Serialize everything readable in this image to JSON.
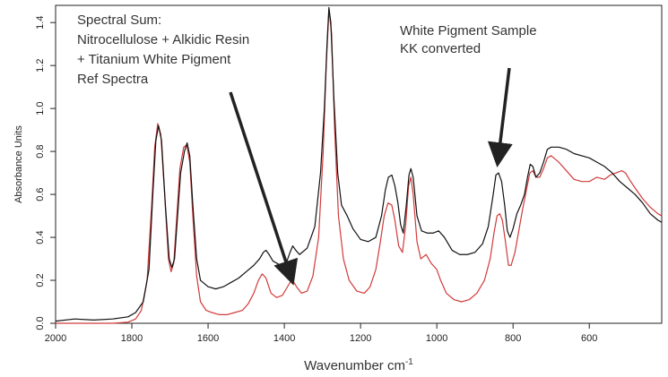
{
  "chart_data": {
    "type": "line",
    "title": "",
    "xlabel": "Wavenumber",
    "xlabel_unit": "cm",
    "xlabel_unit_sup": "-1",
    "ylabel": "Absorbance Units",
    "xlim": [
      2000,
      410
    ],
    "ylim": [
      0,
      1.48
    ],
    "x_reversed": true,
    "x_ticks": [
      2000,
      1800,
      1600,
      1400,
      1200,
      1000,
      800,
      600
    ],
    "y_ticks": [
      0.0,
      0.2,
      0.4,
      0.6,
      0.8,
      1.0,
      1.2,
      1.4
    ],
    "y_tick_labels": [
      "0.0",
      "0.2",
      "0.4",
      "0.6",
      "0.8",
      "1.0",
      "1.2",
      "1.4"
    ],
    "grid": false,
    "series": [
      {
        "name": "White Pigment Sample KK converted",
        "color": "#111111",
        "points": [
          [
            2000,
            0.01
          ],
          [
            1950,
            0.02
          ],
          [
            1900,
            0.015
          ],
          [
            1850,
            0.02
          ],
          [
            1810,
            0.03
          ],
          [
            1790,
            0.05
          ],
          [
            1770,
            0.1
          ],
          [
            1755,
            0.25
          ],
          [
            1745,
            0.6
          ],
          [
            1737,
            0.85
          ],
          [
            1730,
            0.92
          ],
          [
            1722,
            0.85
          ],
          [
            1712,
            0.55
          ],
          [
            1702,
            0.3
          ],
          [
            1695,
            0.26
          ],
          [
            1688,
            0.3
          ],
          [
            1680,
            0.5
          ],
          [
            1672,
            0.7
          ],
          [
            1662,
            0.8
          ],
          [
            1655,
            0.84
          ],
          [
            1648,
            0.78
          ],
          [
            1640,
            0.55
          ],
          [
            1630,
            0.3
          ],
          [
            1620,
            0.2
          ],
          [
            1600,
            0.17
          ],
          [
            1580,
            0.16
          ],
          [
            1560,
            0.17
          ],
          [
            1540,
            0.19
          ],
          [
            1520,
            0.21
          ],
          [
            1500,
            0.24
          ],
          [
            1480,
            0.27
          ],
          [
            1465,
            0.3
          ],
          [
            1455,
            0.33
          ],
          [
            1448,
            0.34
          ],
          [
            1440,
            0.32
          ],
          [
            1430,
            0.29
          ],
          [
            1410,
            0.27
          ],
          [
            1395,
            0.28
          ],
          [
            1385,
            0.33
          ],
          [
            1378,
            0.36
          ],
          [
            1370,
            0.34
          ],
          [
            1360,
            0.32
          ],
          [
            1340,
            0.35
          ],
          [
            1320,
            0.45
          ],
          [
            1305,
            0.7
          ],
          [
            1295,
            1.0
          ],
          [
            1288,
            1.3
          ],
          [
            1283,
            1.47
          ],
          [
            1278,
            1.4
          ],
          [
            1270,
            1.05
          ],
          [
            1260,
            0.7
          ],
          [
            1250,
            0.55
          ],
          [
            1235,
            0.5
          ],
          [
            1220,
            0.44
          ],
          [
            1200,
            0.39
          ],
          [
            1180,
            0.38
          ],
          [
            1160,
            0.4
          ],
          [
            1145,
            0.5
          ],
          [
            1135,
            0.62
          ],
          [
            1127,
            0.68
          ],
          [
            1118,
            0.69
          ],
          [
            1110,
            0.64
          ],
          [
            1102,
            0.56
          ],
          [
            1095,
            0.46
          ],
          [
            1088,
            0.42
          ],
          [
            1080,
            0.55
          ],
          [
            1073,
            0.69
          ],
          [
            1068,
            0.72
          ],
          [
            1062,
            0.68
          ],
          [
            1052,
            0.5
          ],
          [
            1040,
            0.43
          ],
          [
            1025,
            0.42
          ],
          [
            1010,
            0.42
          ],
          [
            995,
            0.43
          ],
          [
            980,
            0.4
          ],
          [
            960,
            0.34
          ],
          [
            940,
            0.32
          ],
          [
            920,
            0.32
          ],
          [
            900,
            0.33
          ],
          [
            880,
            0.37
          ],
          [
            865,
            0.45
          ],
          [
            852,
            0.6
          ],
          [
            845,
            0.69
          ],
          [
            838,
            0.7
          ],
          [
            830,
            0.66
          ],
          [
            822,
            0.55
          ],
          [
            815,
            0.43
          ],
          [
            808,
            0.4
          ],
          [
            800,
            0.44
          ],
          [
            790,
            0.51
          ],
          [
            780,
            0.55
          ],
          [
            770,
            0.6
          ],
          [
            762,
            0.68
          ],
          [
            755,
            0.74
          ],
          [
            748,
            0.73
          ],
          [
            740,
            0.68
          ],
          [
            730,
            0.7
          ],
          [
            720,
            0.75
          ],
          [
            710,
            0.81
          ],
          [
            700,
            0.82
          ],
          [
            680,
            0.82
          ],
          [
            660,
            0.81
          ],
          [
            640,
            0.79
          ],
          [
            620,
            0.78
          ],
          [
            600,
            0.77
          ],
          [
            580,
            0.75
          ],
          [
            560,
            0.73
          ],
          [
            540,
            0.7
          ],
          [
            520,
            0.66
          ],
          [
            500,
            0.63
          ],
          [
            480,
            0.6
          ],
          [
            460,
            0.56
          ],
          [
            440,
            0.51
          ],
          [
            420,
            0.48
          ],
          [
            410,
            0.47
          ]
        ]
      },
      {
        "name": "Spectral Sum: Nitrocellulose + Alkidic Resin + Titanium White Pigment Ref Spectra",
        "color": "#d23a3a",
        "points": [
          [
            2000,
            0.0
          ],
          [
            1950,
            0.0
          ],
          [
            1900,
            0.0
          ],
          [
            1850,
            0.0
          ],
          [
            1810,
            0.005
          ],
          [
            1790,
            0.02
          ],
          [
            1775,
            0.06
          ],
          [
            1760,
            0.2
          ],
          [
            1748,
            0.55
          ],
          [
            1740,
            0.82
          ],
          [
            1732,
            0.93
          ],
          [
            1724,
            0.88
          ],
          [
            1714,
            0.6
          ],
          [
            1704,
            0.3
          ],
          [
            1697,
            0.24
          ],
          [
            1690,
            0.28
          ],
          [
            1682,
            0.5
          ],
          [
            1674,
            0.72
          ],
          [
            1664,
            0.82
          ],
          [
            1656,
            0.83
          ],
          [
            1648,
            0.75
          ],
          [
            1640,
            0.5
          ],
          [
            1630,
            0.22
          ],
          [
            1620,
            0.1
          ],
          [
            1605,
            0.06
          ],
          [
            1590,
            0.05
          ],
          [
            1570,
            0.04
          ],
          [
            1550,
            0.04
          ],
          [
            1530,
            0.05
          ],
          [
            1510,
            0.06
          ],
          [
            1495,
            0.09
          ],
          [
            1480,
            0.14
          ],
          [
            1468,
            0.2
          ],
          [
            1458,
            0.23
          ],
          [
            1448,
            0.21
          ],
          [
            1435,
            0.14
          ],
          [
            1420,
            0.12
          ],
          [
            1405,
            0.13
          ],
          [
            1395,
            0.16
          ],
          [
            1385,
            0.19
          ],
          [
            1378,
            0.2
          ],
          [
            1368,
            0.17
          ],
          [
            1355,
            0.14
          ],
          [
            1340,
            0.15
          ],
          [
            1325,
            0.22
          ],
          [
            1310,
            0.4
          ],
          [
            1298,
            0.8
          ],
          [
            1290,
            1.2
          ],
          [
            1283,
            1.46
          ],
          [
            1276,
            1.35
          ],
          [
            1268,
            0.9
          ],
          [
            1258,
            0.5
          ],
          [
            1245,
            0.3
          ],
          [
            1230,
            0.2
          ],
          [
            1210,
            0.15
          ],
          [
            1190,
            0.14
          ],
          [
            1175,
            0.17
          ],
          [
            1160,
            0.25
          ],
          [
            1148,
            0.38
          ],
          [
            1138,
            0.5
          ],
          [
            1128,
            0.56
          ],
          [
            1118,
            0.55
          ],
          [
            1110,
            0.48
          ],
          [
            1100,
            0.36
          ],
          [
            1090,
            0.33
          ],
          [
            1082,
            0.45
          ],
          [
            1074,
            0.64
          ],
          [
            1068,
            0.68
          ],
          [
            1062,
            0.6
          ],
          [
            1052,
            0.38
          ],
          [
            1042,
            0.3
          ],
          [
            1028,
            0.32
          ],
          [
            1015,
            0.28
          ],
          [
            1000,
            0.25
          ],
          [
            990,
            0.2
          ],
          [
            975,
            0.14
          ],
          [
            955,
            0.11
          ],
          [
            935,
            0.1
          ],
          [
            915,
            0.11
          ],
          [
            895,
            0.14
          ],
          [
            875,
            0.2
          ],
          [
            860,
            0.3
          ],
          [
            850,
            0.42
          ],
          [
            842,
            0.5
          ],
          [
            835,
            0.51
          ],
          [
            828,
            0.48
          ],
          [
            820,
            0.38
          ],
          [
            812,
            0.27
          ],
          [
            805,
            0.27
          ],
          [
            795,
            0.33
          ],
          [
            785,
            0.43
          ],
          [
            775,
            0.53
          ],
          [
            765,
            0.62
          ],
          [
            756,
            0.7
          ],
          [
            748,
            0.71
          ],
          [
            740,
            0.68
          ],
          [
            730,
            0.68
          ],
          [
            720,
            0.72
          ],
          [
            710,
            0.77
          ],
          [
            700,
            0.78
          ],
          [
            680,
            0.75
          ],
          [
            660,
            0.71
          ],
          [
            640,
            0.67
          ],
          [
            620,
            0.66
          ],
          [
            600,
            0.66
          ],
          [
            580,
            0.68
          ],
          [
            560,
            0.67
          ],
          [
            545,
            0.69
          ],
          [
            530,
            0.7
          ],
          [
            515,
            0.71
          ],
          [
            505,
            0.7
          ],
          [
            495,
            0.67
          ],
          [
            480,
            0.63
          ],
          [
            460,
            0.58
          ],
          [
            440,
            0.54
          ],
          [
            420,
            0.51
          ],
          [
            410,
            0.5
          ]
        ]
      }
    ],
    "annotations": [
      {
        "name": "spectral-sum",
        "lines": [
          "Spectral Sum:",
          "Nitrocellulose + Alkidic Resin",
          "+ Titanium White Pigment",
          "Ref Spectra"
        ],
        "arrow_points_to": {
          "x": 1380,
          "y": 0.2
        }
      },
      {
        "name": "white-pigment",
        "lines": [
          "White Pigment Sample",
          "KK converted"
        ],
        "arrow_points_to": {
          "x": 840,
          "y": 0.75
        }
      }
    ]
  }
}
